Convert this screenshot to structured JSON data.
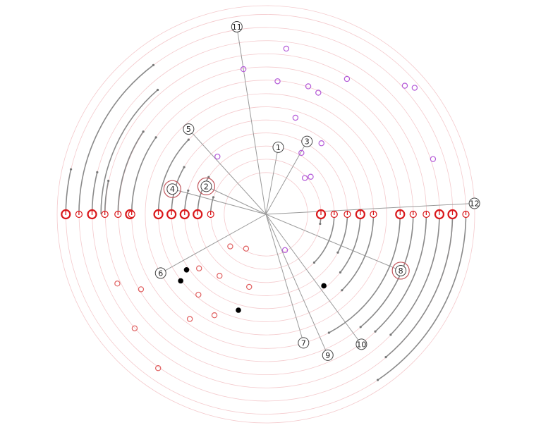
{
  "labels": [
    {
      "id": "1",
      "r": 0.3267,
      "angle": 79.6,
      "halo": false
    },
    {
      "id": "2",
      "r": 0.3155,
      "angle": 154.9,
      "halo": true
    },
    {
      "id": "3",
      "r": 0.4009,
      "angle": 60.6,
      "halo": false
    },
    {
      "id": "4",
      "r": 0.4642,
      "angle": 164.9,
      "halo": true
    },
    {
      "id": "5",
      "r": 0.5513,
      "angle": 132.2,
      "halo": false
    },
    {
      "id": "6",
      "r": 0.5776,
      "angle": 209.2,
      "halo": false
    },
    {
      "id": "7",
      "r": 0.6419,
      "angle": 286.3,
      "halo": false
    },
    {
      "id": "8",
      "r": 0.7,
      "angle": 337.3,
      "halo": true
    },
    {
      "id": "9",
      "r": 0.7375,
      "angle": 293.7,
      "halo": false
    },
    {
      "id": "10",
      "r": 0.7727,
      "angle": 306.3,
      "halo": false
    },
    {
      "id": "11",
      "r": 0.9094,
      "angle": 98.8,
      "halo": false
    },
    {
      "id": "12",
      "r": 1.0,
      "angle": 3.0,
      "halo": false
    }
  ],
  "axis_points": [
    {
      "r": 0.2646,
      "dir": "left",
      "weight": "small"
    },
    {
      "r": 0.327,
      "dir": "left",
      "weight": "large"
    },
    {
      "r": 0.3893,
      "dir": "left",
      "weight": "large"
    },
    {
      "r": 0.4522,
      "dir": "left",
      "weight": "large"
    },
    {
      "r": 0.515,
      "dir": "left",
      "weight": "large"
    },
    {
      "r": 0.6507,
      "dir": "left",
      "weight": "large"
    },
    {
      "r": 0.6429,
      "dir": "left",
      "weight": "small"
    },
    {
      "r": 0.7085,
      "dir": "left",
      "weight": "small"
    },
    {
      "r": 0.7714,
      "dir": "left",
      "weight": "small"
    },
    {
      "r": 0.8327,
      "dir": "left",
      "weight": "large"
    },
    {
      "r": 0.8955,
      "dir": "left",
      "weight": "small"
    },
    {
      "r": 0.9584,
      "dir": "left",
      "weight": "large"
    },
    {
      "r": 0.2636,
      "dir": "right",
      "weight": "large"
    },
    {
      "r": 0.327,
      "dir": "right",
      "weight": "small"
    },
    {
      "r": 0.39,
      "dir": "right",
      "weight": "small"
    },
    {
      "r": 0.4522,
      "dir": "right",
      "weight": "large"
    },
    {
      "r": 0.515,
      "dir": "right",
      "weight": "small"
    },
    {
      "r": 0.6429,
      "dir": "right",
      "weight": "large"
    },
    {
      "r": 0.7053,
      "dir": "right",
      "weight": "small"
    },
    {
      "r": 0.7681,
      "dir": "right",
      "weight": "small"
    },
    {
      "r": 0.8309,
      "dir": "right",
      "weight": "large"
    },
    {
      "r": 0.8936,
      "dir": "right",
      "weight": "large"
    },
    {
      "r": 0.9578,
      "dir": "right",
      "weight": "small"
    }
  ],
  "arcs": [
    {
      "r": 0.2646,
      "start": 180,
      "end": 162
    },
    {
      "r": 0.327,
      "start": 180,
      "end": 147
    },
    {
      "r": 0.3893,
      "start": 180,
      "end": 163
    },
    {
      "r": 0.4522,
      "start": 180,
      "end": 150
    },
    {
      "r": 0.515,
      "start": 180,
      "end": 136
    },
    {
      "r": 0.6429,
      "start": 180,
      "end": 145
    },
    {
      "r": 0.7714,
      "start": 180,
      "end": 168
    },
    {
      "r": 0.8327,
      "start": 180,
      "end": 166
    },
    {
      "r": 0.8955,
      "start": 180,
      "end": 127
    },
    {
      "r": 0.9584,
      "start": 180,
      "end": 167
    },
    {
      "r": 0.7085,
      "start": 180,
      "end": 146
    },
    {
      "r": 0.79,
      "start": 180,
      "end": 131
    },
    {
      "r": 0.2636,
      "start": 0,
      "end": -10
    },
    {
      "r": 0.327,
      "start": 0,
      "end": -45
    },
    {
      "r": 0.39,
      "start": 0,
      "end": -28
    },
    {
      "r": 0.4522,
      "start": 0,
      "end": -38
    },
    {
      "r": 0.515,
      "start": 0,
      "end": -45
    },
    {
      "r": 0.6429,
      "start": 0,
      "end": -62
    },
    {
      "r": 0.7053,
      "start": 0,
      "end": -50
    },
    {
      "r": 0.7681,
      "start": 0,
      "end": -47
    },
    {
      "r": 0.8309,
      "start": 0,
      "end": -44
    },
    {
      "r": 0.8936,
      "start": 0,
      "end": -50
    },
    {
      "r": 0.9578,
      "start": 0,
      "end": -56
    }
  ],
  "scatter": [
    {
      "r": 0.1946,
      "angle": 298.0,
      "kind": "purple"
    },
    {
      "r": 0.361,
      "angle": 130.0,
      "kind": "purple"
    },
    {
      "r": 0.6345,
      "angle": 66.7,
      "kind": "purple"
    },
    {
      "r": 0.64,
      "angle": 85.0,
      "kind": "purple"
    },
    {
      "r": 0.646,
      "angle": 71.7,
      "kind": "purple"
    },
    {
      "r": 0.756,
      "angle": 59.1,
      "kind": "purple"
    },
    {
      "r": 0.9069,
      "angle": 42.8,
      "kind": "purple"
    },
    {
      "r": 0.9355,
      "angle": 40.4,
      "kind": "purple"
    },
    {
      "r": 0.484,
      "angle": 73.0,
      "kind": "purple"
    },
    {
      "r": 0.34,
      "angle": 60.0,
      "kind": "purple"
    },
    {
      "r": 0.432,
      "angle": 52.0,
      "kind": "purple"
    },
    {
      "r": 0.843,
      "angle": 18.3,
      "kind": "purple"
    },
    {
      "r": 0.704,
      "angle": 98.8,
      "kind": "purple"
    },
    {
      "r": 0.8,
      "angle": 83.0,
      "kind": "purple"
    },
    {
      "r": 0.28,
      "angle": 40.0,
      "kind": "purple"
    },
    {
      "r": 0.255,
      "angle": 43.0,
      "kind": "purple"
    },
    {
      "r": 0.19,
      "angle": 240.0,
      "kind": "red"
    },
    {
      "r": 0.23,
      "angle": 222.0,
      "kind": "red"
    },
    {
      "r": 0.357,
      "angle": 257.0,
      "kind": "red"
    },
    {
      "r": 0.369,
      "angle": 233.0,
      "kind": "red"
    },
    {
      "r": 0.412,
      "angle": 219.0,
      "kind": "red"
    },
    {
      "r": 0.503,
      "angle": 230.0,
      "kind": "red"
    },
    {
      "r": 0.543,
      "angle": 243.0,
      "kind": "red"
    },
    {
      "r": 0.62,
      "angle": 234.0,
      "kind": "red"
    },
    {
      "r": 0.698,
      "angle": 211.0,
      "kind": "red"
    },
    {
      "r": 0.785,
      "angle": 205.0,
      "kind": "red"
    },
    {
      "r": 0.833,
      "angle": 221.0,
      "kind": "red"
    },
    {
      "r": 0.464,
      "angle": 215.0,
      "kind": "black"
    },
    {
      "r": 0.478,
      "angle": 254.0,
      "kind": "black"
    },
    {
      "r": 0.441,
      "angle": 309.0,
      "kind": "black"
    },
    {
      "r": 0.518,
      "angle": 218.0,
      "kind": "black"
    },
    {
      "r": 0.9,
      "angle": 235.0,
      "kind": "red"
    }
  ]
}
